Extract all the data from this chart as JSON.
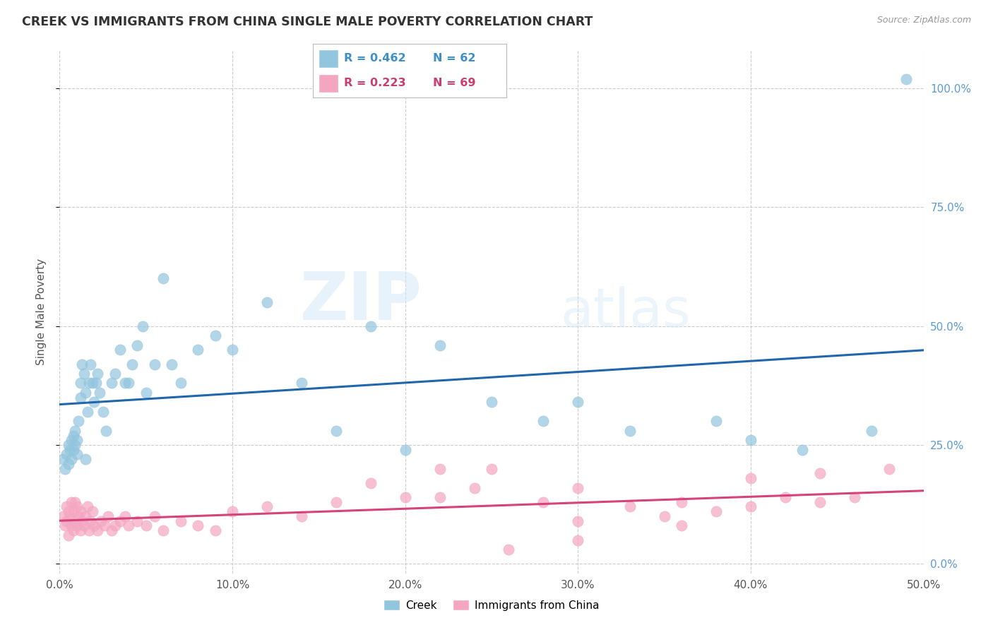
{
  "title": "CREEK VS IMMIGRANTS FROM CHINA SINGLE MALE POVERTY CORRELATION CHART",
  "source": "Source: ZipAtlas.com",
  "ylabel": "Single Male Poverty",
  "xlim": [
    0,
    0.5
  ],
  "ylim": [
    -0.02,
    1.08
  ],
  "creek_R": 0.462,
  "creek_N": 62,
  "china_R": 0.223,
  "china_N": 69,
  "creek_color": "#92c5de",
  "china_color": "#f4a6c0",
  "creek_line_color": "#2166ac",
  "china_line_color": "#d6427a",
  "watermark_zip": "ZIP",
  "watermark_atlas": "atlas",
  "legend_labels": [
    "Creek",
    "Immigrants from China"
  ],
  "creek_x": [
    0.002,
    0.003,
    0.004,
    0.005,
    0.005,
    0.006,
    0.007,
    0.007,
    0.008,
    0.008,
    0.009,
    0.009,
    0.01,
    0.01,
    0.011,
    0.012,
    0.012,
    0.013,
    0.014,
    0.015,
    0.015,
    0.016,
    0.017,
    0.018,
    0.019,
    0.02,
    0.021,
    0.022,
    0.023,
    0.025,
    0.027,
    0.03,
    0.032,
    0.035,
    0.038,
    0.04,
    0.042,
    0.045,
    0.048,
    0.05,
    0.055,
    0.06,
    0.065,
    0.07,
    0.08,
    0.09,
    0.1,
    0.12,
    0.14,
    0.16,
    0.18,
    0.2,
    0.22,
    0.25,
    0.28,
    0.3,
    0.33,
    0.38,
    0.4,
    0.43,
    0.47,
    0.49
  ],
  "creek_y": [
    0.22,
    0.2,
    0.23,
    0.25,
    0.21,
    0.24,
    0.26,
    0.22,
    0.27,
    0.24,
    0.25,
    0.28,
    0.23,
    0.26,
    0.3,
    0.35,
    0.38,
    0.42,
    0.4,
    0.36,
    0.22,
    0.32,
    0.38,
    0.42,
    0.38,
    0.34,
    0.38,
    0.4,
    0.36,
    0.32,
    0.28,
    0.38,
    0.4,
    0.45,
    0.38,
    0.38,
    0.42,
    0.46,
    0.5,
    0.36,
    0.42,
    0.6,
    0.42,
    0.38,
    0.45,
    0.48,
    0.45,
    0.55,
    0.38,
    0.28,
    0.5,
    0.24,
    0.46,
    0.34,
    0.3,
    0.34,
    0.28,
    0.3,
    0.26,
    0.24,
    0.28,
    1.02
  ],
  "china_x": [
    0.002,
    0.003,
    0.004,
    0.004,
    0.005,
    0.005,
    0.006,
    0.007,
    0.007,
    0.008,
    0.008,
    0.009,
    0.009,
    0.01,
    0.01,
    0.011,
    0.012,
    0.012,
    0.013,
    0.014,
    0.015,
    0.016,
    0.017,
    0.018,
    0.019,
    0.02,
    0.022,
    0.024,
    0.026,
    0.028,
    0.03,
    0.032,
    0.035,
    0.038,
    0.04,
    0.045,
    0.05,
    0.055,
    0.06,
    0.07,
    0.08,
    0.09,
    0.1,
    0.12,
    0.14,
    0.16,
    0.18,
    0.2,
    0.22,
    0.25,
    0.28,
    0.3,
    0.33,
    0.36,
    0.38,
    0.4,
    0.42,
    0.44,
    0.46,
    0.48,
    0.3,
    0.35,
    0.4,
    0.22,
    0.24,
    0.26,
    0.3,
    0.36,
    0.44
  ],
  "china_y": [
    0.1,
    0.08,
    0.12,
    0.09,
    0.11,
    0.06,
    0.1,
    0.08,
    0.13,
    0.07,
    0.11,
    0.09,
    0.13,
    0.08,
    0.12,
    0.1,
    0.07,
    0.11,
    0.09,
    0.08,
    0.1,
    0.12,
    0.07,
    0.09,
    0.11,
    0.08,
    0.07,
    0.09,
    0.08,
    0.1,
    0.07,
    0.08,
    0.09,
    0.1,
    0.08,
    0.09,
    0.08,
    0.1,
    0.07,
    0.09,
    0.08,
    0.07,
    0.11,
    0.12,
    0.1,
    0.13,
    0.17,
    0.14,
    0.2,
    0.2,
    0.13,
    0.16,
    0.12,
    0.13,
    0.11,
    0.18,
    0.14,
    0.13,
    0.14,
    0.2,
    0.09,
    0.1,
    0.12,
    0.14,
    0.16,
    0.03,
    0.05,
    0.08,
    0.19
  ]
}
